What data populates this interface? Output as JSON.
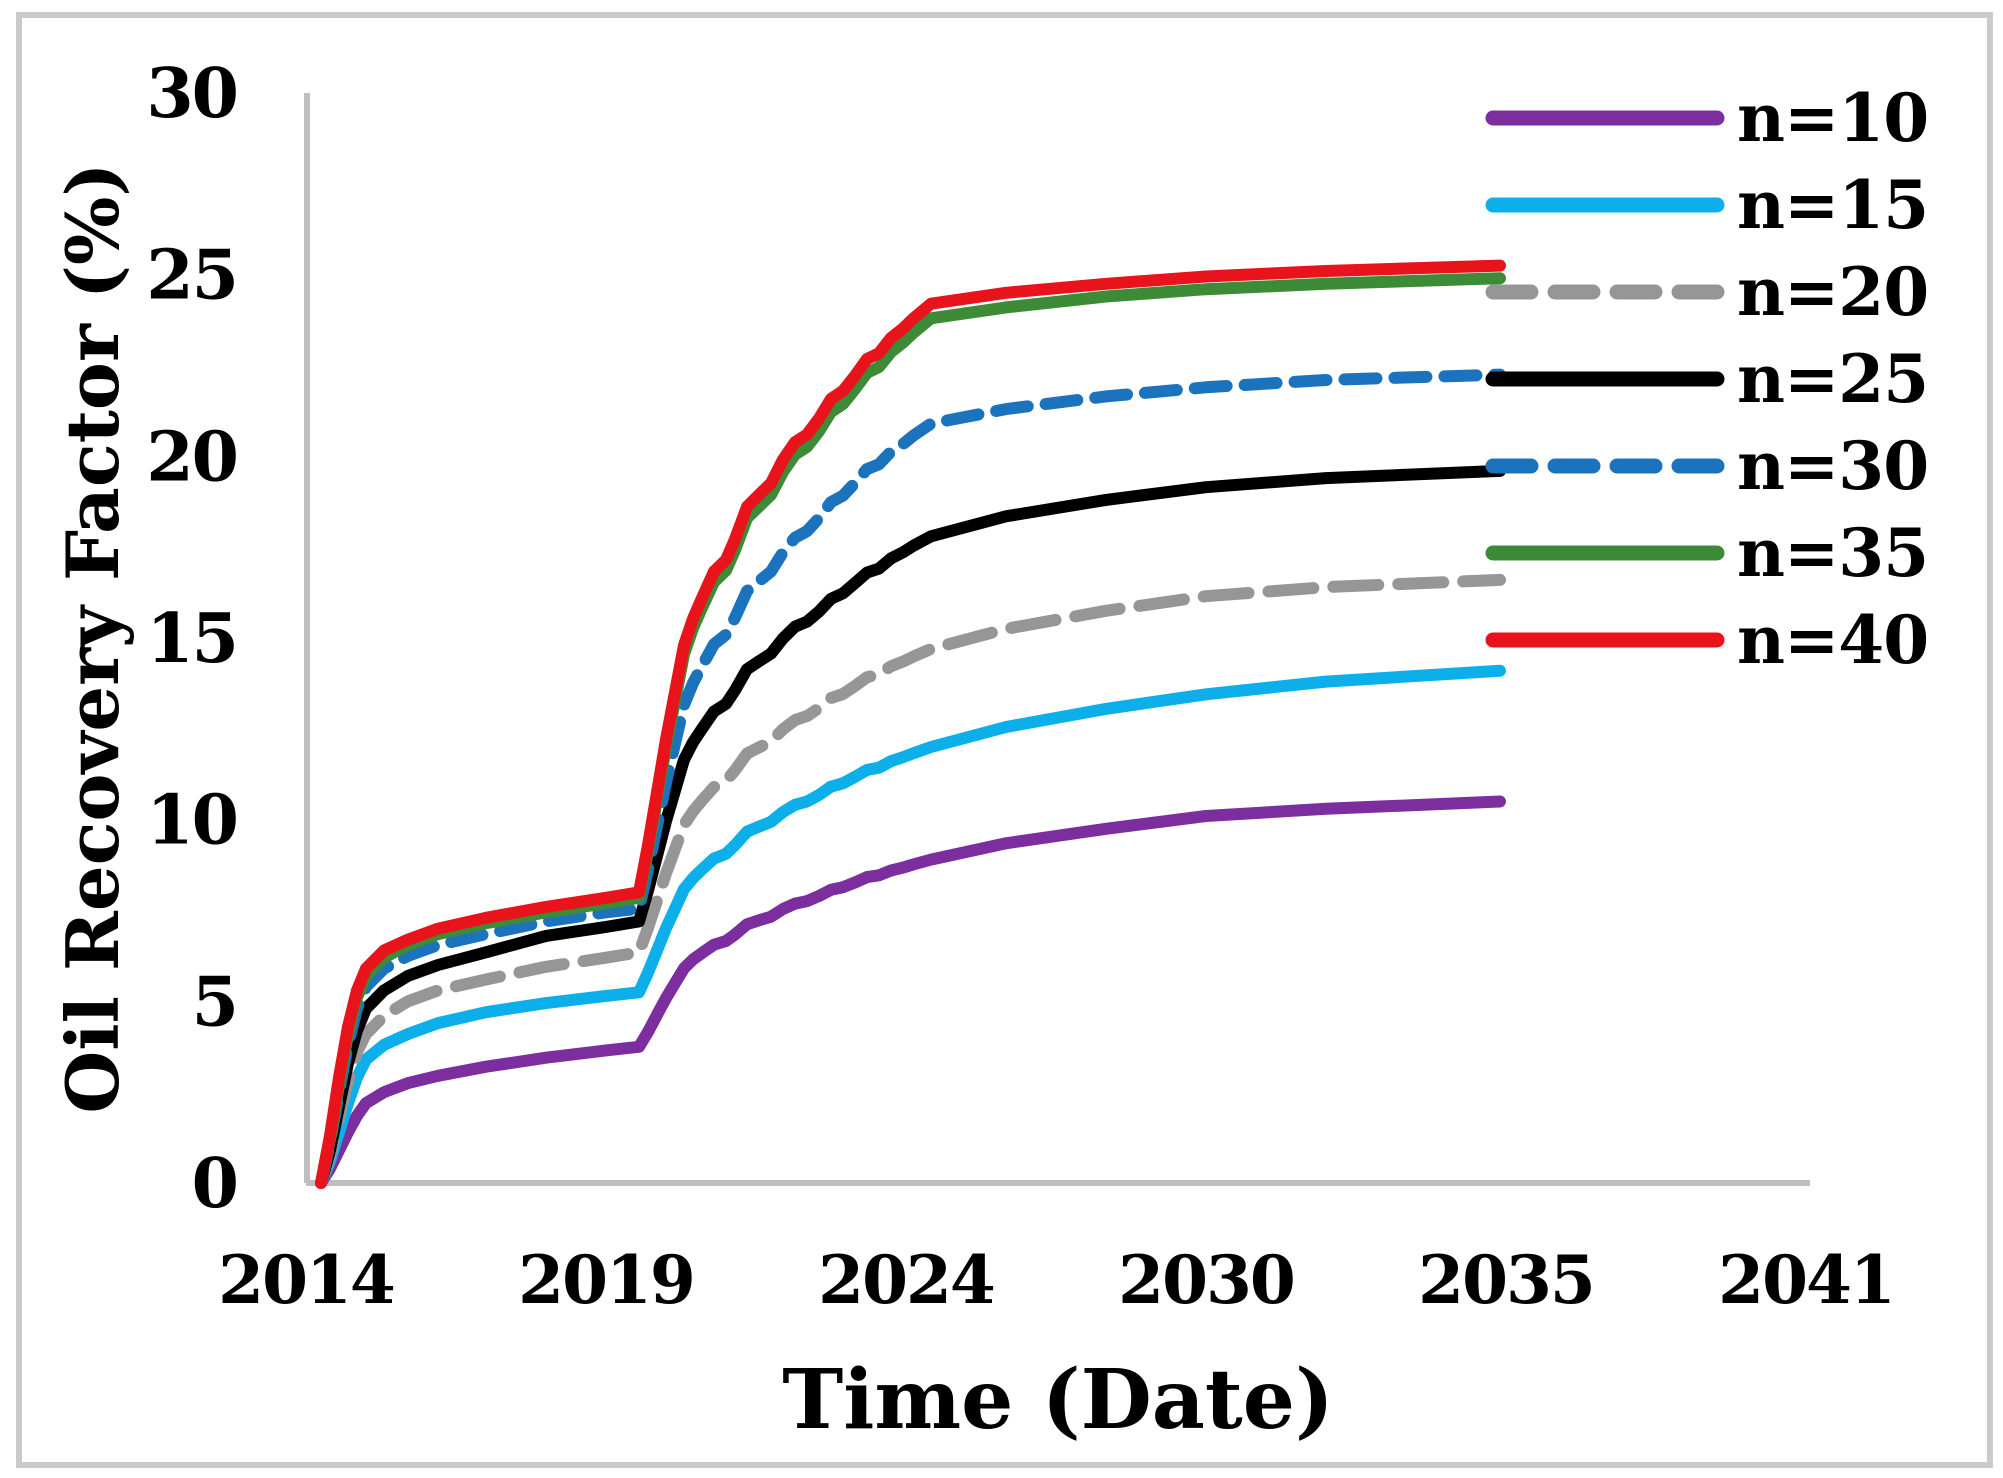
{
  "figure": {
    "background": "#ffffff",
    "border_color": "#cacaca",
    "axis_line_color": "#bfbfbf",
    "text_color": "#000000"
  },
  "chart_data": {
    "type": "line",
    "title": "",
    "xlabel": "Time (Date)",
    "ylabel": "Oil Recovery Factor (%)",
    "legend_position": "top-right",
    "grid": false,
    "x_axis": {
      "tick_years": [
        2014,
        2019,
        2024,
        2030,
        2035,
        2041
      ],
      "tick_labels": [
        "2014",
        "2019",
        "2024",
        "2030",
        "2035",
        "2041"
      ]
    },
    "y_axis": {
      "min": 0,
      "max": 30,
      "tick_values": [
        0,
        5,
        10,
        15,
        20,
        25,
        30
      ],
      "tick_labels": [
        "0",
        "5",
        "10",
        "15",
        "20",
        "25",
        "30"
      ]
    },
    "x": [
      2014.25,
      2014.4,
      2014.55,
      2014.7,
      2014.85,
      2015.0,
      2015.3,
      2015.7,
      2016.2,
      2017.0,
      2018.0,
      2019.0,
      2019.55,
      2019.7,
      2019.85,
      2020.0,
      2020.15,
      2020.3,
      2020.45,
      2020.6,
      2020.8,
      2021.0,
      2021.15,
      2021.35,
      2021.55,
      2021.75,
      2021.95,
      2022.15,
      2022.35,
      2022.55,
      2022.75,
      2022.95,
      2023.15,
      2023.35,
      2023.55,
      2023.75,
      2023.95,
      2024.15,
      2024.5,
      2026.0,
      2028.0,
      2030.0,
      2032.0,
      2034.9
    ],
    "series": [
      {
        "name": "n=10",
        "color": "#7c2d9e",
        "dash": null,
        "legend_dash": null,
        "values": [
          0,
          0.4,
          0.9,
          1.4,
          1.85,
          2.2,
          2.5,
          2.75,
          2.95,
          3.2,
          3.45,
          3.65,
          3.75,
          4.16,
          4.63,
          5.09,
          5.5,
          5.91,
          6.15,
          6.33,
          6.56,
          6.66,
          6.84,
          7.12,
          7.23,
          7.33,
          7.54,
          7.69,
          7.76,
          7.9,
          8.07,
          8.14,
          8.27,
          8.42,
          8.47,
          8.6,
          8.68,
          8.77,
          8.9,
          9.35,
          9.75,
          10.1,
          10.3,
          10.5
        ]
      },
      {
        "name": "n=15",
        "color": "#0dafea",
        "dash": null,
        "legend_dash": null,
        "values": [
          0,
          0.6,
          1.4,
          2.2,
          2.9,
          3.4,
          3.8,
          4.1,
          4.4,
          4.7,
          4.95,
          5.15,
          5.25,
          5.79,
          6.4,
          7.01,
          7.55,
          8.09,
          8.39,
          8.63,
          8.93,
          9.06,
          9.3,
          9.67,
          9.81,
          9.94,
          10.21,
          10.41,
          10.5,
          10.68,
          10.91,
          11,
          11.18,
          11.37,
          11.43,
          11.61,
          11.72,
          11.83,
          12,
          12.55,
          13.05,
          13.45,
          13.8,
          14.1
        ]
      },
      {
        "name": "n=20",
        "color": "#969696",
        "dash": [
          45,
          20
        ],
        "legend_dash": [
          38,
          24
        ],
        "values": [
          0,
          0.75,
          1.8,
          2.8,
          3.6,
          4.1,
          4.6,
          5,
          5.3,
          5.6,
          5.95,
          6.2,
          6.35,
          7.02,
          7.77,
          8.52,
          9.19,
          9.86,
          10.23,
          10.53,
          10.9,
          11.07,
          11.36,
          11.82,
          11.99,
          12.15,
          12.49,
          12.74,
          12.85,
          13.07,
          13.35,
          13.46,
          13.68,
          13.92,
          14,
          14.22,
          14.35,
          14.49,
          14.7,
          15.25,
          15.75,
          16.15,
          16.4,
          16.6
        ]
      },
      {
        "name": "n=25",
        "color": "#000000",
        "dash": null,
        "legend_dash": null,
        "values": [
          0,
          0.9,
          2.1,
          3.3,
          4.2,
          4.8,
          5.3,
          5.7,
          6,
          6.35,
          6.8,
          7.05,
          7.2,
          8.05,
          9,
          9.96,
          10.8,
          11.65,
          12.13,
          12.5,
          12.98,
          13.19,
          13.56,
          14.14,
          14.36,
          14.57,
          14.99,
          15.31,
          15.45,
          15.73,
          16.08,
          16.23,
          16.51,
          16.8,
          16.91,
          17.19,
          17.36,
          17.54,
          17.8,
          18.35,
          18.8,
          19.15,
          19.4,
          19.6
        ]
      },
      {
        "name": "n=30",
        "color": "#1b73bd",
        "dash": [
          32,
          18
        ],
        "legend_dash": [
          38,
          24
        ],
        "values": [
          0,
          1.1,
          2.5,
          3.8,
          4.8,
          5.4,
          5.9,
          6.25,
          6.55,
          6.85,
          7.2,
          7.45,
          7.55,
          8.62,
          9.82,
          11.02,
          12.09,
          13.16,
          13.76,
          14.23,
          14.83,
          15.09,
          15.56,
          16.29,
          16.56,
          16.83,
          17.36,
          17.76,
          17.94,
          18.3,
          18.74,
          18.92,
          19.27,
          19.65,
          19.78,
          20.13,
          20.34,
          20.57,
          20.9,
          21.3,
          21.65,
          21.9,
          22.1,
          22.25
        ]
      },
      {
        "name": "n=35",
        "color": "#3d8b37",
        "dash": null,
        "legend_dash": null,
        "values": [
          0,
          1.2,
          2.7,
          4.1,
          5.1,
          5.7,
          6.2,
          6.55,
          6.85,
          7.15,
          7.45,
          7.7,
          7.85,
          9.13,
          10.56,
          12,
          13.27,
          14.55,
          15.27,
          15.83,
          16.54,
          16.86,
          17.42,
          18.3,
          18.62,
          18.94,
          19.57,
          20.05,
          20.26,
          20.69,
          21.22,
          21.44,
          21.85,
          22.3,
          22.46,
          22.87,
          23.13,
          23.4,
          23.8,
          24.1,
          24.4,
          24.6,
          24.75,
          24.9
        ]
      },
      {
        "name": "n=40",
        "color": "#e8131b",
        "dash": null,
        "legend_dash": null,
        "values": [
          0,
          1.3,
          2.9,
          4.3,
          5.3,
          5.9,
          6.4,
          6.7,
          7,
          7.3,
          7.6,
          7.85,
          8,
          9.3,
          10.75,
          12.21,
          13.51,
          14.8,
          15.53,
          16.1,
          16.83,
          17.15,
          17.72,
          18.61,
          18.94,
          19.26,
          19.91,
          20.39,
          20.6,
          21.04,
          21.58,
          21.8,
          22.22,
          22.68,
          22.84,
          23.26,
          23.52,
          23.8,
          24.2,
          24.5,
          24.75,
          24.95,
          25.1,
          25.25
        ]
      }
    ]
  }
}
